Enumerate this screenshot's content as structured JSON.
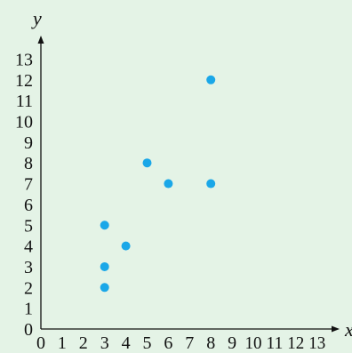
{
  "colors": {
    "background": "#e4f3e6",
    "axis": "#111111",
    "point": "#1aa7e8"
  },
  "chart_data": {
    "type": "scatter",
    "title": "",
    "xlabel": "x",
    "ylabel": "y",
    "xlim": [
      0,
      13
    ],
    "ylim": [
      0,
      13
    ],
    "grid": false,
    "x_ticks": [
      "0",
      "1",
      "2",
      "3",
      "4",
      "5",
      "6",
      "7",
      "8",
      "9",
      "10",
      "11",
      "12",
      "13"
    ],
    "y_ticks": [
      "0",
      "1",
      "2",
      "3",
      "4",
      "5",
      "6",
      "7",
      "8",
      "9",
      "10",
      "11",
      "12",
      "13"
    ],
    "series": [
      {
        "points": [
          {
            "x": 3,
            "y": 2
          },
          {
            "x": 3,
            "y": 3
          },
          {
            "x": 3,
            "y": 5
          },
          {
            "x": 4,
            "y": 4
          },
          {
            "x": 5,
            "y": 8
          },
          {
            "x": 6,
            "y": 7
          },
          {
            "x": 8,
            "y": 7
          },
          {
            "x": 8,
            "y": 12
          }
        ]
      }
    ]
  }
}
